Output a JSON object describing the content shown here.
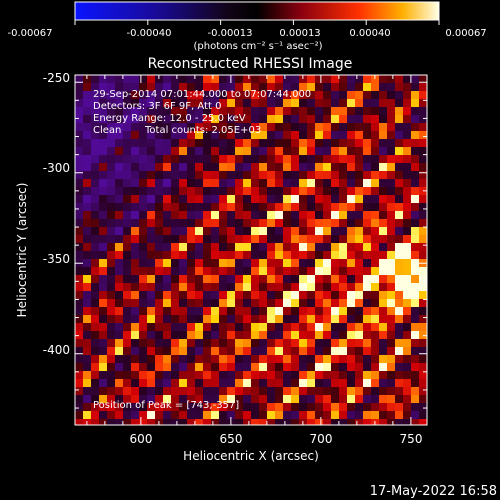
{
  "colorbar": {
    "ticks": [
      "-0.00067",
      "-0.00040",
      "-0.00013",
      "0.00013",
      "0.00040",
      "0.00067"
    ],
    "units": "(photons cm⁻² s⁻¹ asec⁻²)"
  },
  "title": "Reconstructed RHESSI Image",
  "annotations": {
    "time_range": "29-Sep-2014 07:01:44.000 to 07:07:44.000",
    "detectors": "Detectors: 3F 6F 9F, Att 0",
    "energy": "Energy Range: 12.0 - 25.0 keV",
    "method": "Clean",
    "counts": "Total counts: 2.05E+03",
    "peak": "Position of Peak = [743,-357]"
  },
  "axes": {
    "xlabel": "Heliocentric X (arcsec)",
    "ylabel": "Heliocentric Y (arcsec)",
    "xticks": [
      "600",
      "650",
      "700",
      "750"
    ],
    "yticks": [
      "-250",
      "-300",
      "-350",
      "-400"
    ]
  },
  "footer": {
    "date": "17-May-2022 16:58"
  },
  "palette": {
    "low": "#0000ff",
    "mid": "#000000",
    "high": "#ffff00",
    "top": "#ffffff"
  }
}
